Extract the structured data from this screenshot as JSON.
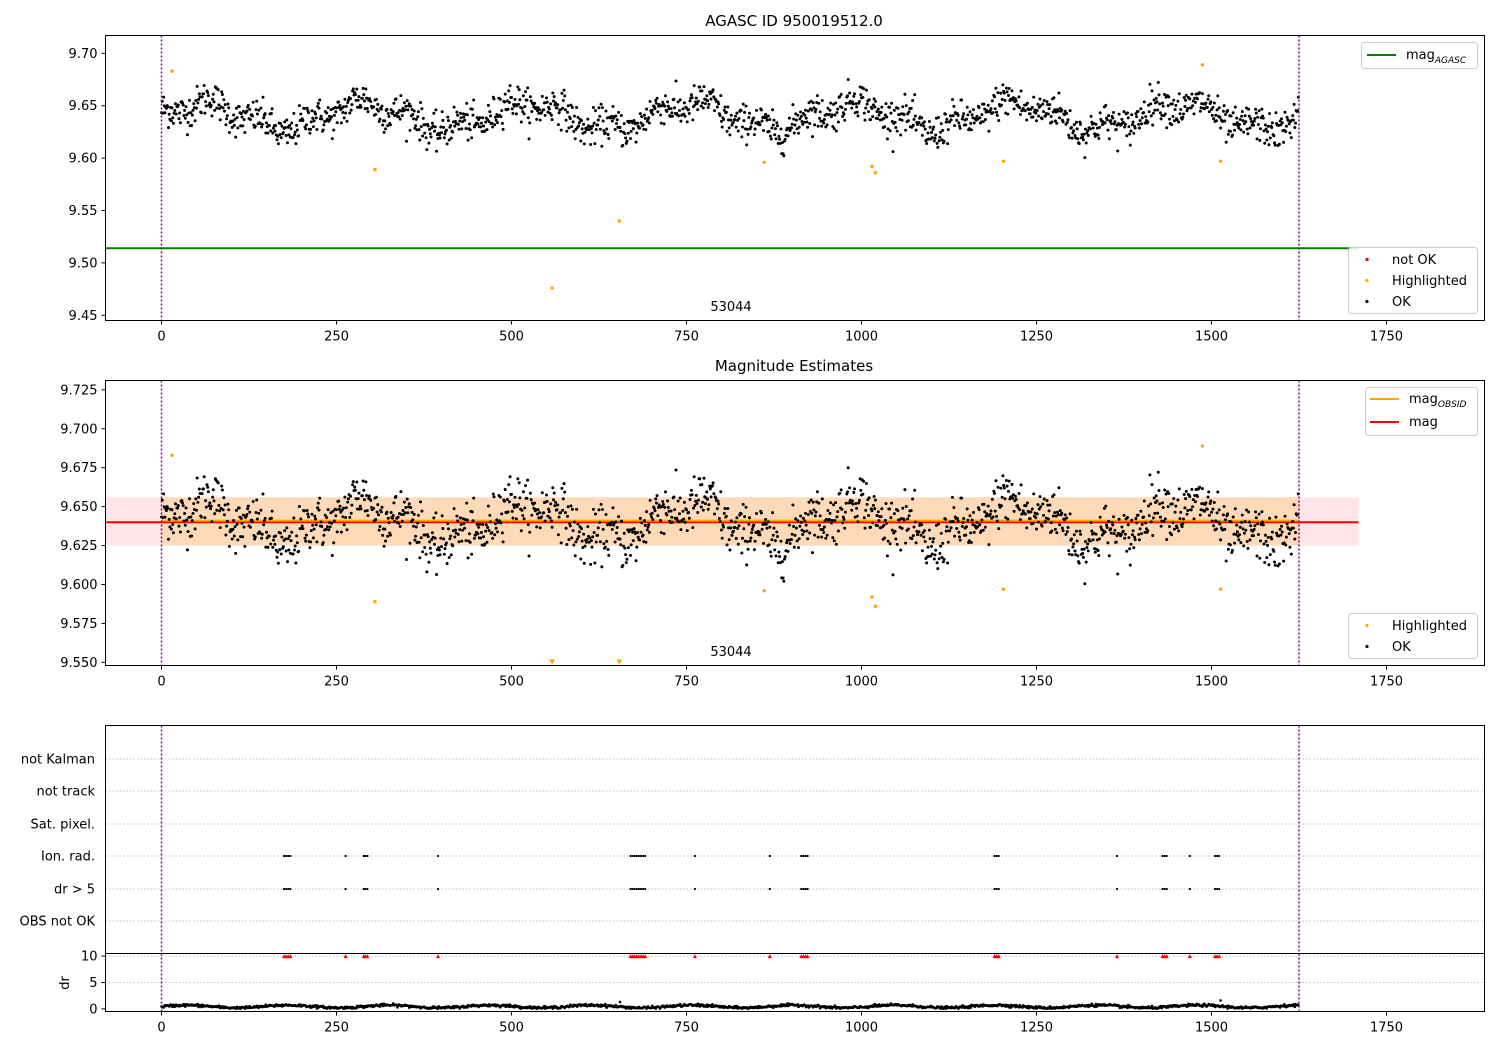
{
  "colors": {
    "ok": "#000000",
    "highlighted": "#ffa500",
    "not_ok": "#ff0000",
    "agasc_line": "#008000",
    "mean_line": "#ff0000",
    "obsid_line": "#ffa500",
    "band_inner": "#ffdab9",
    "band_outer": "#ffe4e8",
    "boundary": "#800080",
    "grid": "#b0b0b0"
  },
  "chart_data": [
    {
      "type": "scatter",
      "title": "AGASC ID 950019512.0",
      "xlim": [
        -80,
        1890
      ],
      "ylim": [
        9.445,
        9.717
      ],
      "xticks": [
        "0",
        "250",
        "500",
        "750",
        "1000",
        "1250",
        "1500",
        "1750"
      ],
      "xtick_values": [
        0,
        250,
        500,
        750,
        1000,
        1250,
        1500,
        1750
      ],
      "yticks": [
        "9.45",
        "9.50",
        "9.55",
        "9.60",
        "9.65",
        "9.70"
      ],
      "ytick_values": [
        9.45,
        9.5,
        9.55,
        9.6,
        9.65,
        9.7
      ],
      "annotation": {
        "text": "53044",
        "x": 810,
        "y": 9.455
      },
      "boundaries": [
        0,
        1625
      ],
      "hline": {
        "name": "mag_AGASC",
        "y": 9.514,
        "xmin": -80,
        "xmax": 1710
      },
      "legend_lines": [
        {
          "label": "mag",
          "sub": "AGASC"
        }
      ],
      "legend_markers": [
        {
          "label": "not OK"
        },
        {
          "label": "Highlighted"
        },
        {
          "label": "OK"
        }
      ],
      "ok_series": {
        "name": "OK",
        "n": 1625,
        "x_range": [
          0,
          1625
        ],
        "mean": 9.64,
        "scatter": 0.014
      },
      "highlighted": [
        {
          "x": 15,
          "y": 9.683
        },
        {
          "x": 305,
          "y": 9.589
        },
        {
          "x": 558,
          "y": 9.476
        },
        {
          "x": 654,
          "y": 9.54
        },
        {
          "x": 861,
          "y": 9.596
        },
        {
          "x": 1015,
          "y": 9.592
        },
        {
          "x": 1020,
          "y": 9.586
        },
        {
          "x": 1203,
          "y": 9.597
        },
        {
          "x": 1487,
          "y": 9.689
        },
        {
          "x": 1513,
          "y": 9.597
        }
      ]
    },
    {
      "type": "scatter",
      "title": "Magnitude Estimates",
      "xlim": [
        -80,
        1890
      ],
      "ylim": [
        9.548,
        9.731
      ],
      "xticks": [
        "0",
        "250",
        "500",
        "750",
        "1000",
        "1250",
        "1500",
        "1750"
      ],
      "xtick_values": [
        0,
        250,
        500,
        750,
        1000,
        1250,
        1500,
        1750
      ],
      "yticks": [
        "9.550",
        "9.575",
        "9.600",
        "9.625",
        "9.650",
        "9.675",
        "9.700",
        "9.725"
      ],
      "ytick_values": [
        9.55,
        9.575,
        9.6,
        9.625,
        9.65,
        9.675,
        9.7,
        9.725
      ],
      "annotation": {
        "text": "53044",
        "x": 810,
        "y": 9.556
      },
      "boundaries": [
        0,
        1625
      ],
      "mean_line": {
        "name": "mag",
        "y": 9.64,
        "xmin": -80,
        "xmax": 1710
      },
      "obsid_line": {
        "name": "mag_OBSID",
        "y": 9.641,
        "xmin": 0,
        "xmax": 1625
      },
      "band_outer": {
        "y": [
          9.625,
          9.656
        ],
        "x": [
          -80,
          1710
        ]
      },
      "band_inner": {
        "y": [
          9.625,
          9.656
        ],
        "x": [
          0,
          1625
        ]
      },
      "legend_lines": [
        {
          "label": "mag",
          "sub": "OBSID"
        },
        {
          "label": "mag",
          "sub": ""
        }
      ],
      "legend_markers": [
        {
          "label": "Highlighted"
        },
        {
          "label": "OK"
        }
      ],
      "ok_series": {
        "name": "OK",
        "n": 1625,
        "x_range": [
          0,
          1625
        ],
        "mean": 9.64,
        "scatter": 0.014
      },
      "highlighted": [
        {
          "x": 15,
          "y": 9.683
        },
        {
          "x": 305,
          "y": 9.589
        },
        {
          "x": 861,
          "y": 9.596
        },
        {
          "x": 1015,
          "y": 9.592
        },
        {
          "x": 1020,
          "y": 9.586
        },
        {
          "x": 1203,
          "y": 9.597
        },
        {
          "x": 1487,
          "y": 9.689
        },
        {
          "x": 1513,
          "y": 9.597
        }
      ],
      "off_scale_markers": [
        {
          "x": 558
        },
        {
          "x": 654
        }
      ]
    },
    {
      "type": "scatter",
      "title": "",
      "xlim": [
        -80,
        1890
      ],
      "xticks": [
        "0",
        "250",
        "500",
        "750",
        "1000",
        "1250",
        "1500",
        "1750"
      ],
      "xtick_values": [
        0,
        250,
        500,
        750,
        1000,
        1250,
        1500,
        1750
      ],
      "flag_rows": [
        "not Kalman",
        "not track",
        "Sat. pixel.",
        "Ion. rad.",
        "dr > 5",
        "OBS not OK"
      ],
      "flag_events_x": [
        175,
        178,
        181,
        184,
        263,
        289,
        291,
        294,
        395,
        670,
        673,
        676,
        679,
        682,
        685,
        688,
        691,
        762,
        869,
        914,
        917,
        920,
        923,
        1190,
        1193,
        1196,
        1365,
        1430,
        1433,
        1436,
        1469,
        1505,
        1508,
        1511
      ],
      "flagged_rows": [
        "Ion. rad.",
        "dr > 5"
      ],
      "dr_panel": {
        "ylabel": "dr",
        "yticks": [
          "0",
          "5",
          "10"
        ],
        "ytick_values": [
          0,
          5,
          10
        ],
        "ylim": [
          -0.5,
          10.5
        ],
        "clipped_value": 10,
        "baseline": {
          "n": 1625,
          "mean": 0.45,
          "scatter": 0.25
        },
        "spikes": [
          {
            "x": 655,
            "y": 1.3
          },
          {
            "x": 1513,
            "y": 1.6
          }
        ]
      },
      "boundaries": [
        0,
        1625
      ]
    }
  ]
}
